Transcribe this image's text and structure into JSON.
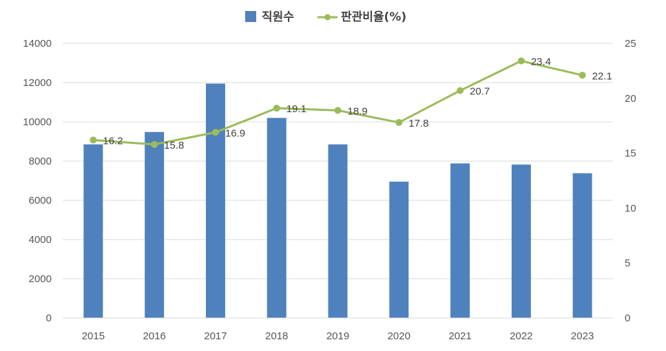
{
  "chart_data": {
    "type": "bar+line",
    "categories": [
      "2015",
      "2016",
      "2017",
      "2018",
      "2019",
      "2020",
      "2021",
      "2022",
      "2023"
    ],
    "series": [
      {
        "name": "직원수",
        "type": "bar",
        "axis": "left",
        "color": "#4f81bd",
        "values": [
          8850,
          9480,
          11950,
          10200,
          8850,
          6950,
          7880,
          7820,
          7380
        ]
      },
      {
        "name": "판관비율(%)",
        "type": "line",
        "axis": "right",
        "color": "#9bbb59",
        "values": [
          16.2,
          15.8,
          16.9,
          19.1,
          18.9,
          17.8,
          20.7,
          23.4,
          22.1
        ],
        "labels": [
          "16.2",
          "15.8",
          "16.9",
          "19.1",
          "18.9",
          "17.8",
          "20.7",
          "23.4",
          "22.1"
        ]
      }
    ],
    "y_left": {
      "min": 0,
      "max": 14000,
      "ticks": [
        "0",
        "2000",
        "4000",
        "6000",
        "8000",
        "10000",
        "12000",
        "14000"
      ]
    },
    "y_right": {
      "min": 0,
      "max": 25,
      "ticks": [
        "0",
        "5",
        "10",
        "15",
        "20",
        "25"
      ]
    },
    "grid": true,
    "legend_position": "top"
  }
}
